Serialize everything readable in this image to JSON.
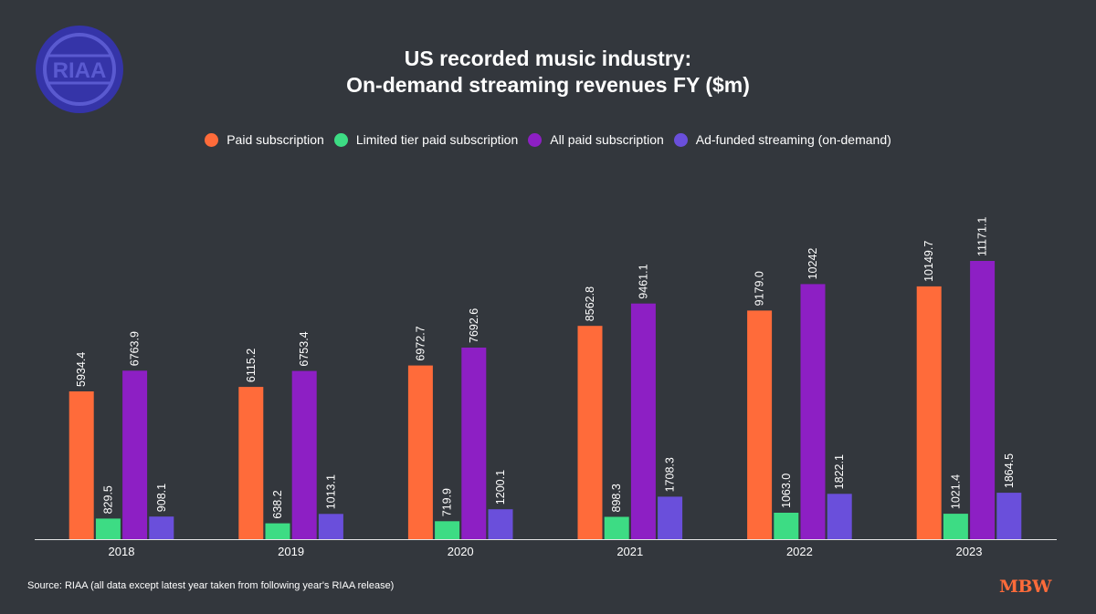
{
  "logo": {
    "text": "RIAA",
    "color": "#3534a8"
  },
  "title_lines": [
    "US recorded music industry:",
    "On-demand streaming revenues FY ($m)"
  ],
  "legend": [
    {
      "label": "Paid subscription",
      "color": "#ff6b3a"
    },
    {
      "label": "Limited tier paid subscription",
      "color": "#3ddc84"
    },
    {
      "label": "All paid subscription",
      "color": "#8d1fc4"
    },
    {
      "label": "Ad-funded streaming (on-demand)",
      "color": "#6a4fdb"
    }
  ],
  "chart_data": {
    "type": "bar",
    "categories": [
      "2018",
      "2019",
      "2020",
      "2021",
      "2022",
      "2023"
    ],
    "series": [
      {
        "name": "Paid subscription",
        "color": "#ff6b3a",
        "values": [
          5934.4,
          6115.2,
          6972.7,
          8562.8,
          9179.0,
          10149.7
        ],
        "labels": [
          "5934.4",
          "6115.2",
          "6972.7",
          "8562.8",
          "9179.0",
          "10149.7"
        ]
      },
      {
        "name": "Limited tier paid subscription",
        "color": "#3ddc84",
        "values": [
          829.5,
          638.2,
          719.9,
          898.3,
          1063.0,
          1021.4
        ],
        "labels": [
          "829.5",
          "638.2",
          "719.9",
          "898.3",
          "1063.0",
          "1021.4"
        ]
      },
      {
        "name": "All paid subscription",
        "color": "#8d1fc4",
        "values": [
          6763.9,
          6753.4,
          7692.6,
          9461.1,
          10242,
          11171.1
        ],
        "labels": [
          "6763.9",
          "6753.4",
          "7692.6",
          "9461.1",
          "10242",
          "11171.1"
        ]
      },
      {
        "name": "Ad-funded streaming (on-demand)",
        "color": "#6a4fdb",
        "values": [
          908.1,
          1013.1,
          1200.1,
          1708.3,
          1822.1,
          1864.5
        ],
        "labels": [
          "908.1",
          "1013.1",
          "1200.1",
          "1708.3",
          "1822.1",
          "1864.5"
        ]
      }
    ],
    "title": "US recorded music industry: On-demand streaming revenues FY ($m)",
    "xlabel": "",
    "ylabel": "",
    "ylim": [
      0,
      12000
    ],
    "grid": false,
    "legend_position": "top-center"
  },
  "source": "Source: RIAA (all data except latest year taken from following year's RIAA release)",
  "brand": "MBW"
}
